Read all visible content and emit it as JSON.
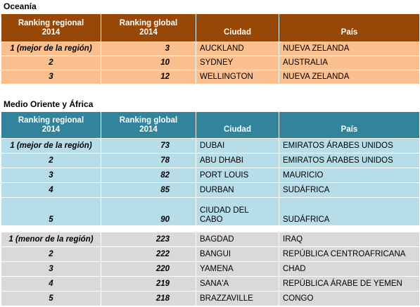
{
  "oceania": {
    "title": "Oceanía",
    "headers": [
      "Ranking regional\n2014",
      "Ranking global\n2014",
      "Ciudad",
      "País"
    ],
    "rows": [
      [
        "1 (mejor de la región)",
        "3",
        "AUCKLAND",
        "NUEVA ZELANDA"
      ],
      [
        "2",
        "10",
        "SYDNEY",
        "AUSTRALIA"
      ],
      [
        "3",
        "12",
        "WELLINGTON",
        "NUEVA ZELANDA"
      ]
    ]
  },
  "middle_east_africa": {
    "title": "Medio Oriente  y África",
    "headers": [
      "Ranking regional\n2014",
      "Ranking global\n2014",
      "Ciudad",
      "País"
    ],
    "top_rows": [
      [
        "1 (mejor de la región)",
        "73",
        "DUBAI",
        "EMIRATOS ÁRABES UNIDOS"
      ],
      [
        "2",
        "78",
        "ABU DHABI",
        "EMIRATOS ÁRABES UNIDOS"
      ],
      [
        "3",
        "82",
        "PORT LOUIS",
        "MAURICIO"
      ],
      [
        "4",
        "85",
        "DURBAN",
        "SUDÁFRICA"
      ],
      [
        "5",
        "90",
        "CIUDAD DEL\nCABO",
        "SUDÁFRICA"
      ]
    ],
    "bottom_rows": [
      [
        "1 (menor de la región)",
        "223",
        "BAGDAD",
        "IRAQ"
      ],
      [
        "2",
        "222",
        "BANGUI",
        "REPÚBLICA CENTROAFRICANA"
      ],
      [
        "3",
        "220",
        "YAMENA",
        "CHAD"
      ],
      [
        "4",
        "219",
        "SANA'A",
        "REPÚBLICA ÁRABE DE YEMEN"
      ],
      [
        "5",
        "218",
        "BRAZZAVILLE",
        "CONGO"
      ]
    ]
  }
}
